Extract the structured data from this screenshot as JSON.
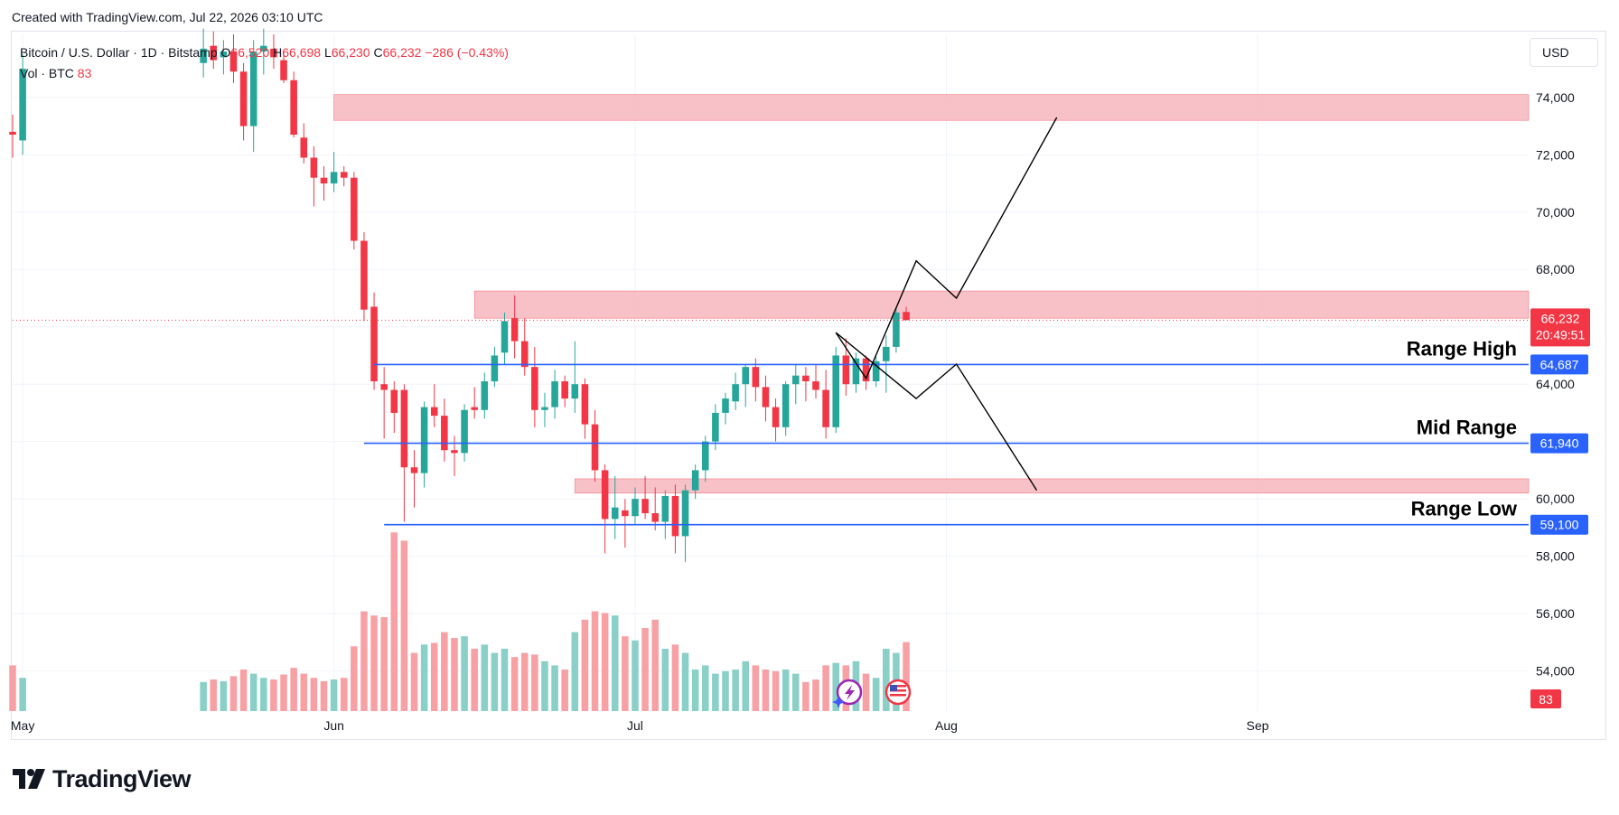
{
  "header": {
    "created_text": "Created with TradingView.com, Jul 22, 2026 03:10 UTC"
  },
  "legend": {
    "symbol": "Bitcoin / U.S. Dollar · 1D · Bitstamp",
    "o_label": "O",
    "o_value": "66,520",
    "h_label": "H",
    "h_value": "66,698",
    "l_label": "L",
    "l_value": "66,230",
    "c_label": "C",
    "c_value": "66,232",
    "change": "−286 (−0.43%)",
    "volume_label": "Vol · BTC",
    "volume_value": "83"
  },
  "currency_button": "USD",
  "footer": {
    "brand": "TradingView"
  },
  "colors": {
    "up": "#26a69a",
    "down": "#f23645",
    "up_volume": "#8ad0c8",
    "down_volume": "#f8a1a5",
    "level_line": "#2962ff",
    "zone_fill": "#f7b6bd",
    "zone_stroke": "#f23645",
    "projection": "#000000"
  },
  "chart_data": {
    "type": "candlestick",
    "symbol": "Bitcoin / U.S. Dollar",
    "interval": "1D",
    "exchange": "Bitstamp",
    "y_ticks": [
      54000,
      56000,
      58000,
      60000,
      62000,
      64000,
      66000,
      68000,
      70000,
      72000,
      74000
    ],
    "y_tick_labels": [
      "54,000",
      "56,000",
      "58,000",
      "60,000",
      "62,000",
      "64,000",
      "66,000",
      "68,000",
      "70,000",
      "72,000",
      "74,000"
    ],
    "x_labels": [
      {
        "date": "2026-05-01",
        "label": "May"
      },
      {
        "date": "2026-06-01",
        "label": "Jun"
      },
      {
        "date": "2026-07-01",
        "label": "Jul"
      },
      {
        "date": "2026-08-01",
        "label": "Aug"
      },
      {
        "date": "2026-09-01",
        "label": "Sep"
      }
    ],
    "x_range": [
      "2026-04-30",
      "2026-09-28"
    ],
    "y_range": [
      52600,
      76200
    ],
    "last_price": {
      "value": 66232,
      "label": "66,232",
      "countdown": "20:49:51"
    },
    "volume_badge": "83",
    "levels": [
      {
        "name": "Range High",
        "value": 64687,
        "label": "64,687",
        "start": "2026-06-05"
      },
      {
        "name": "Mid Range",
        "value": 61940,
        "label": "61,940",
        "start": "2026-06-04"
      },
      {
        "name": "Range Low",
        "value": 59100,
        "label": "59,100",
        "start": "2026-06-06"
      }
    ],
    "zones": [
      {
        "from": 73200,
        "to": 74100,
        "start": "2026-06-01"
      },
      {
        "from": 66300,
        "to": 67250,
        "start": "2026-06-15"
      },
      {
        "from": 60200,
        "to": 60700,
        "start": "2026-06-25"
      }
    ],
    "projections": [
      {
        "points": [
          [
            "2026-07-21",
            65800
          ],
          [
            "2026-07-24",
            64200
          ],
          [
            "2026-07-29",
            68300
          ],
          [
            "2026-08-02",
            67000
          ],
          [
            "2026-08-12",
            73300
          ]
        ]
      },
      {
        "points": [
          [
            "2026-07-21",
            65800
          ],
          [
            "2026-07-29",
            63500
          ],
          [
            "2026-08-02",
            64700
          ],
          [
            "2026-08-10",
            60300
          ]
        ]
      }
    ],
    "candles": [
      {
        "date": "2026-04-30",
        "o": 72800,
        "h": 73400,
        "l": 71900,
        "c": 72700,
        "v": 55
      },
      {
        "date": "2026-05-01",
        "o": 72500,
        "h": 75500,
        "l": 72000,
        "c": 75000,
        "v": 40
      },
      {
        "date": "2026-05-19",
        "o": 75200,
        "h": 76400,
        "l": 74700,
        "c": 75700,
        "v": 35
      },
      {
        "date": "2026-05-20",
        "o": 75800,
        "h": 76300,
        "l": 75000,
        "c": 75300,
        "v": 38
      },
      {
        "date": "2026-05-21",
        "o": 75400,
        "h": 76000,
        "l": 74800,
        "c": 75600,
        "v": 36
      },
      {
        "date": "2026-05-22",
        "o": 75600,
        "h": 76200,
        "l": 74500,
        "c": 74900,
        "v": 42
      },
      {
        "date": "2026-05-23",
        "o": 74900,
        "h": 75200,
        "l": 72500,
        "c": 73000,
        "v": 50
      },
      {
        "date": "2026-05-24",
        "o": 73000,
        "h": 76000,
        "l": 72100,
        "c": 75600,
        "v": 45
      },
      {
        "date": "2026-05-25",
        "o": 75600,
        "h": 76400,
        "l": 74800,
        "c": 75800,
        "v": 40
      },
      {
        "date": "2026-05-26",
        "o": 75700,
        "h": 76200,
        "l": 75000,
        "c": 75400,
        "v": 38
      },
      {
        "date": "2026-05-27",
        "o": 75300,
        "h": 75600,
        "l": 74500,
        "c": 74600,
        "v": 44
      },
      {
        "date": "2026-05-28",
        "o": 74600,
        "h": 74900,
        "l": 72600,
        "c": 72700,
        "v": 52
      },
      {
        "date": "2026-05-29",
        "o": 72600,
        "h": 73100,
        "l": 71700,
        "c": 71900,
        "v": 45
      },
      {
        "date": "2026-05-30",
        "o": 71900,
        "h": 72300,
        "l": 70200,
        "c": 71200,
        "v": 40
      },
      {
        "date": "2026-05-31",
        "o": 71200,
        "h": 71600,
        "l": 70400,
        "c": 71000,
        "v": 36
      },
      {
        "date": "2026-06-01",
        "o": 71000,
        "h": 72100,
        "l": 70700,
        "c": 71400,
        "v": 38
      },
      {
        "date": "2026-06-02",
        "o": 71400,
        "h": 71600,
        "l": 70900,
        "c": 71200,
        "v": 40
      },
      {
        "date": "2026-06-03",
        "o": 71200,
        "h": 71400,
        "l": 68700,
        "c": 69000,
        "v": 78
      },
      {
        "date": "2026-06-04",
        "o": 69000,
        "h": 69300,
        "l": 66200,
        "c": 66600,
        "v": 120
      },
      {
        "date": "2026-06-05",
        "o": 66700,
        "h": 67200,
        "l": 63800,
        "c": 64100,
        "v": 115
      },
      {
        "date": "2026-06-06",
        "o": 64000,
        "h": 64600,
        "l": 62100,
        "c": 63800,
        "v": 113
      },
      {
        "date": "2026-06-07",
        "o": 63800,
        "h": 64100,
        "l": 62300,
        "c": 63000,
        "v": 215
      },
      {
        "date": "2026-06-08",
        "o": 63800,
        "h": 64000,
        "l": 59200,
        "c": 61100,
        "v": 205
      },
      {
        "date": "2026-06-09",
        "o": 61100,
        "h": 61700,
        "l": 59700,
        "c": 60900,
        "v": 70
      },
      {
        "date": "2026-06-10",
        "o": 60900,
        "h": 63400,
        "l": 60400,
        "c": 63200,
        "v": 80
      },
      {
        "date": "2026-06-11",
        "o": 63200,
        "h": 64000,
        "l": 62500,
        "c": 62900,
        "v": 82
      },
      {
        "date": "2026-06-12",
        "o": 62900,
        "h": 63500,
        "l": 61300,
        "c": 61700,
        "v": 95
      },
      {
        "date": "2026-06-13",
        "o": 61700,
        "h": 62200,
        "l": 60800,
        "c": 61600,
        "v": 88
      },
      {
        "date": "2026-06-14",
        "o": 61600,
        "h": 63300,
        "l": 61300,
        "c": 63100,
        "v": 90
      },
      {
        "date": "2026-06-15",
        "o": 63200,
        "h": 63900,
        "l": 62800,
        "c": 63100,
        "v": 75
      },
      {
        "date": "2026-06-16",
        "o": 63100,
        "h": 64400,
        "l": 62800,
        "c": 64100,
        "v": 80
      },
      {
        "date": "2026-06-17",
        "o": 64100,
        "h": 65300,
        "l": 63900,
        "c": 65000,
        "v": 70
      },
      {
        "date": "2026-06-18",
        "o": 65100,
        "h": 66500,
        "l": 64700,
        "c": 66200,
        "v": 75
      },
      {
        "date": "2026-06-19",
        "o": 66300,
        "h": 67100,
        "l": 64900,
        "c": 65500,
        "v": 65
      },
      {
        "date": "2026-06-20",
        "o": 65500,
        "h": 66300,
        "l": 64300,
        "c": 64600,
        "v": 70
      },
      {
        "date": "2026-06-21",
        "o": 64600,
        "h": 65300,
        "l": 62500,
        "c": 63100,
        "v": 68
      },
      {
        "date": "2026-06-22",
        "o": 63100,
        "h": 63700,
        "l": 62500,
        "c": 63200,
        "v": 60
      },
      {
        "date": "2026-06-23",
        "o": 63200,
        "h": 64500,
        "l": 62800,
        "c": 64100,
        "v": 55
      },
      {
        "date": "2026-06-24",
        "o": 64100,
        "h": 64300,
        "l": 63200,
        "c": 63500,
        "v": 50
      },
      {
        "date": "2026-06-25",
        "o": 63500,
        "h": 65500,
        "l": 63000,
        "c": 64000,
        "v": 95
      },
      {
        "date": "2026-06-26",
        "o": 64000,
        "h": 64200,
        "l": 62100,
        "c": 62600,
        "v": 110
      },
      {
        "date": "2026-06-27",
        "o": 62600,
        "h": 63100,
        "l": 60600,
        "c": 61000,
        "v": 120
      },
      {
        "date": "2026-06-28",
        "o": 61000,
        "h": 61200,
        "l": 58100,
        "c": 59300,
        "v": 118
      },
      {
        "date": "2026-06-29",
        "o": 59300,
        "h": 60800,
        "l": 58600,
        "c": 59700,
        "v": 115
      },
      {
        "date": "2026-06-30",
        "o": 59600,
        "h": 60000,
        "l": 58300,
        "c": 59400,
        "v": 90
      },
      {
        "date": "2026-07-01",
        "o": 59400,
        "h": 60400,
        "l": 59100,
        "c": 60000,
        "v": 85
      },
      {
        "date": "2026-07-02",
        "o": 60000,
        "h": 60800,
        "l": 59300,
        "c": 59500,
        "v": 100
      },
      {
        "date": "2026-07-03",
        "o": 59500,
        "h": 60400,
        "l": 58900,
        "c": 59200,
        "v": 110
      },
      {
        "date": "2026-07-04",
        "o": 59200,
        "h": 60300,
        "l": 58600,
        "c": 60100,
        "v": 75
      },
      {
        "date": "2026-07-05",
        "o": 60100,
        "h": 60500,
        "l": 58100,
        "c": 58700,
        "v": 80
      },
      {
        "date": "2026-07-06",
        "o": 58700,
        "h": 60500,
        "l": 57800,
        "c": 60300,
        "v": 70
      },
      {
        "date": "2026-07-07",
        "o": 60300,
        "h": 61200,
        "l": 60000,
        "c": 61000,
        "v": 50
      },
      {
        "date": "2026-07-08",
        "o": 61000,
        "h": 62200,
        "l": 60600,
        "c": 62000,
        "v": 55
      },
      {
        "date": "2026-07-09",
        "o": 62000,
        "h": 63300,
        "l": 61700,
        "c": 63000,
        "v": 45
      },
      {
        "date": "2026-07-10",
        "o": 63000,
        "h": 63700,
        "l": 62600,
        "c": 63500,
        "v": 48
      },
      {
        "date": "2026-07-11",
        "o": 63400,
        "h": 64400,
        "l": 63100,
        "c": 64000,
        "v": 50
      },
      {
        "date": "2026-07-12",
        "o": 64000,
        "h": 64700,
        "l": 63200,
        "c": 64600,
        "v": 60
      },
      {
        "date": "2026-07-13",
        "o": 64600,
        "h": 64900,
        "l": 63400,
        "c": 63900,
        "v": 55
      },
      {
        "date": "2026-07-14",
        "o": 63900,
        "h": 64300,
        "l": 62700,
        "c": 63200,
        "v": 50
      },
      {
        "date": "2026-07-15",
        "o": 63200,
        "h": 63500,
        "l": 62000,
        "c": 62500,
        "v": 48
      },
      {
        "date": "2026-07-16",
        "o": 62500,
        "h": 64100,
        "l": 62200,
        "c": 64000,
        "v": 50
      },
      {
        "date": "2026-07-17",
        "o": 64000,
        "h": 64700,
        "l": 63300,
        "c": 64300,
        "v": 45
      },
      {
        "date": "2026-07-18",
        "o": 64300,
        "h": 64600,
        "l": 63400,
        "c": 64100,
        "v": 35
      },
      {
        "date": "2026-07-19",
        "o": 64100,
        "h": 64700,
        "l": 63500,
        "c": 63800,
        "v": 38
      },
      {
        "date": "2026-07-20",
        "o": 63800,
        "h": 64500,
        "l": 62100,
        "c": 62500,
        "v": 55
      },
      {
        "date": "2026-07-21",
        "o": 62500,
        "h": 65300,
        "l": 62300,
        "c": 65000,
        "v": 58
      },
      {
        "date": "2026-07-22",
        "o": 65000,
        "h": 65600,
        "l": 63600,
        "c": 64000,
        "v": 55
      },
      {
        "date": "2026-07-23",
        "o": 64000,
        "h": 65100,
        "l": 63700,
        "c": 64900,
        "v": 60
      },
      {
        "date": "2026-07-24",
        "o": 64900,
        "h": 65000,
        "l": 63800,
        "c": 64100,
        "v": 45
      },
      {
        "date": "2026-07-25",
        "o": 64100,
        "h": 65000,
        "l": 63900,
        "c": 64800,
        "v": 40
      },
      {
        "date": "2026-07-26",
        "o": 64800,
        "h": 65700,
        "l": 63700,
        "c": 65300,
        "v": 75
      },
      {
        "date": "2026-07-27",
        "o": 65300,
        "h": 66700,
        "l": 65100,
        "c": 66500,
        "v": 70
      },
      {
        "date": "2026-07-28",
        "o": 66520,
        "h": 66698,
        "l": 66230,
        "c": 66232,
        "v": 83
      }
    ]
  }
}
